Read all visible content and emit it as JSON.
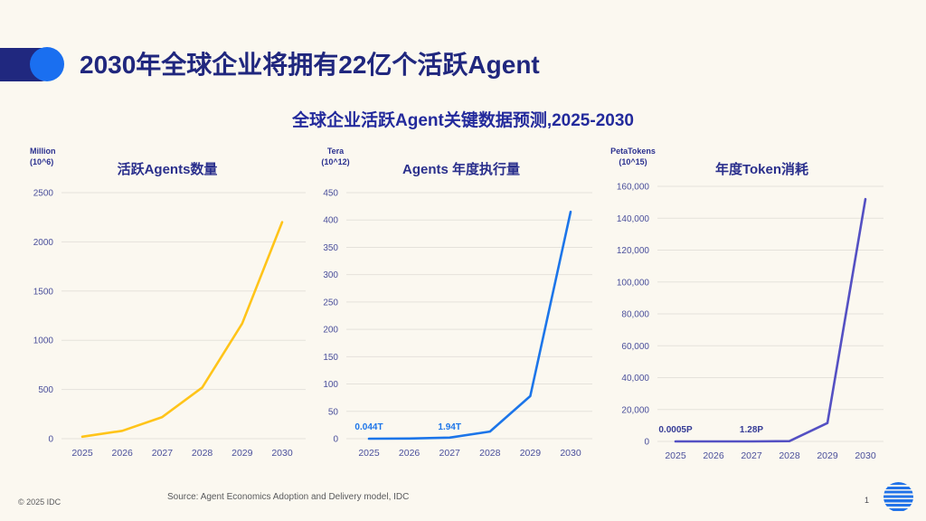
{
  "header": {
    "title": "2030年全球企业将拥有22亿个活跃Agent",
    "subtitle": "全球企业活跃Agent关键数据预测,2025-2030"
  },
  "colors": {
    "background": "#FBF8F0",
    "title_navy": "#20277E",
    "subtitle_blue": "#232A9C",
    "accent_pill_navy": "#20287F",
    "accent_dot_blue": "#1A6FF0",
    "tick_label": "#4A4F9B",
    "gridline": "#E5E2DB",
    "series_yellow": "#FFC419",
    "series_blue": "#1C75E9",
    "series_purple": "#5450C3"
  },
  "chart_data": [
    {
      "type": "line",
      "title": "活跃Agents数量",
      "unit_label": "Million",
      "unit_sub": "(10^6)",
      "categories": [
        "2025",
        "2026",
        "2027",
        "2028",
        "2029",
        "2030"
      ],
      "values": [
        20,
        80,
        220,
        520,
        1170,
        2200
      ],
      "ylim": [
        0,
        2500
      ],
      "ytick_labels": [
        "2500",
        "2000",
        "1500",
        "1000",
        "500",
        "0"
      ],
      "grid": true,
      "legend": "none",
      "line_color": "#FFC419",
      "point_labels": [],
      "point_label_color": "#1C75E9"
    },
    {
      "type": "line",
      "title": "Agents 年度执行量",
      "unit_label": "Tera",
      "unit_sub": "(10^12)",
      "categories": [
        "2025",
        "2026",
        "2027",
        "2028",
        "2029",
        "2030"
      ],
      "values": [
        0.044,
        0.3,
        1.94,
        13,
        78,
        415
      ],
      "ylim": [
        0,
        450
      ],
      "ytick_labels": [
        "450",
        "400",
        "350",
        "300",
        "250",
        "200",
        "150",
        "100",
        "50",
        "0"
      ],
      "grid": true,
      "legend": "none",
      "line_color": "#1C75E9",
      "point_labels": [
        {
          "at": "2025",
          "text": "0.044T"
        },
        {
          "at": "2027",
          "text": "1.94T"
        }
      ],
      "point_label_color": "#1C75E9"
    },
    {
      "type": "line",
      "title": "年度Token消耗",
      "unit_label": "PetaTokens",
      "unit_sub": "(10^15)",
      "categories": [
        "2025",
        "2026",
        "2027",
        "2028",
        "2029",
        "2030"
      ],
      "values": [
        0.0005,
        0.05,
        1.28,
        150,
        11500,
        152000
      ],
      "ylim": [
        0,
        160000
      ],
      "ytick_labels": [
        "160,000",
        "140,000",
        "120,000",
        "100,000",
        "80,000",
        "60,000",
        "40,000",
        "20,000",
        "0"
      ],
      "grid": true,
      "legend": "none",
      "line_color": "#5450C3",
      "point_labels": [
        {
          "at": "2025",
          "text": "0.0005P"
        },
        {
          "at": "2027",
          "text": "1.28P"
        }
      ],
      "point_label_color": "#363C96"
    }
  ],
  "footer": {
    "copyright": "© 2025 IDC",
    "source": "Source: Agent Economics Adoption and Delivery model, IDC",
    "page_number": "1"
  }
}
